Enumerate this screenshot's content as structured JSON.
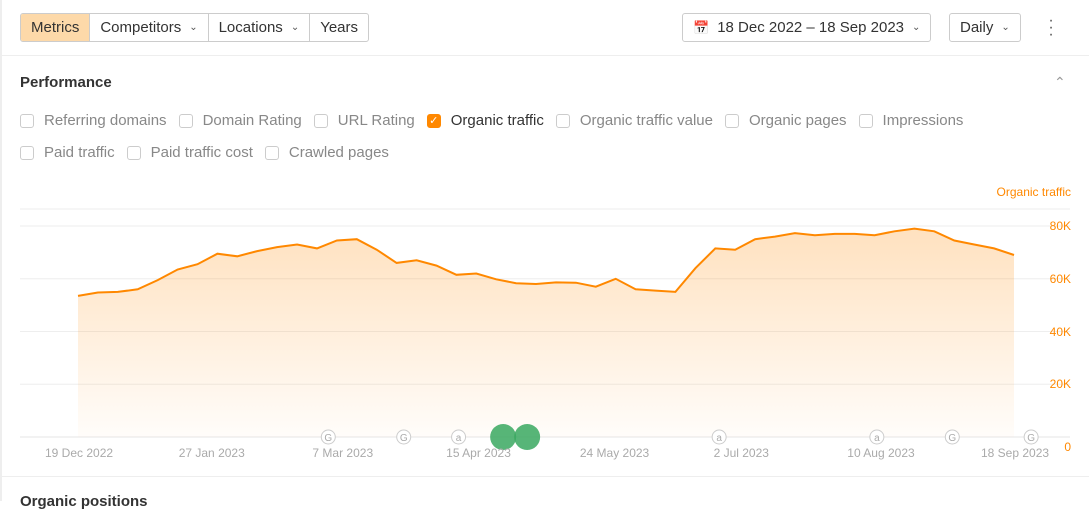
{
  "toolbar": {
    "tabs": [
      {
        "label": "Metrics",
        "active": true
      },
      {
        "label": "Competitors",
        "dropdown": true
      },
      {
        "label": "Locations",
        "dropdown": true
      },
      {
        "label": "Years"
      }
    ],
    "date_range": "18 Dec 2022 – 18 Sep 2023",
    "granularity": "Daily",
    "calendar_icon": "calendar-icon",
    "more_icon": "kebab-icon"
  },
  "section": {
    "title": "Performance",
    "collapse_icon": "chevron-up-icon",
    "next_title": "Organic positions"
  },
  "metrics": [
    {
      "label": "Referring domains",
      "checked": false
    },
    {
      "label": "Domain Rating",
      "checked": false
    },
    {
      "label": "URL Rating",
      "checked": false
    },
    {
      "label": "Organic traffic",
      "checked": true
    },
    {
      "label": "Organic traffic value",
      "checked": false
    },
    {
      "label": "Organic pages",
      "checked": false
    },
    {
      "label": "Impressions",
      "checked": false
    },
    {
      "label": "Paid traffic",
      "checked": false
    },
    {
      "label": "Paid traffic cost",
      "checked": false
    },
    {
      "label": "Crawled pages",
      "checked": false
    }
  ],
  "colors": {
    "accent": "#ff8800",
    "active_tab": "#fdd9a9",
    "event": "#3aa860"
  },
  "chart_data": {
    "type": "area",
    "series": [
      {
        "name": "Organic traffic",
        "color": "#ff8800",
        "start": "2022-12-19",
        "end": "2023-09-18",
        "values": [
          53500,
          54800,
          55000,
          56000,
          59500,
          63500,
          65500,
          69500,
          68500,
          70500,
          72000,
          73000,
          71500,
          74500,
          75000,
          71000,
          66000,
          67000,
          65000,
          61500,
          62000,
          59800,
          58300,
          58000,
          58600,
          58500,
          57000,
          60000,
          56000,
          55500,
          55000,
          64000,
          71500,
          71000,
          75000,
          76000,
          77300,
          76500,
          77000,
          77000,
          76500,
          78000,
          79000,
          78000,
          74500,
          73000,
          71500,
          69000
        ]
      }
    ],
    "ylim": [
      0,
      80000
    ],
    "yticks": [
      "80K",
      "60K",
      "40K",
      "20K",
      "0"
    ],
    "xticks": [
      "19 Dec 2022",
      "27 Jan 2023",
      "7 Mar 2023",
      "15 Apr 2023",
      "24 May 2023",
      "2 Jul 2023",
      "10 Aug 2023",
      "18 Sep 2023"
    ],
    "grid": true,
    "legend": "top-right",
    "annotations": [
      {
        "date": "2023-03-02",
        "type": "G"
      },
      {
        "date": "2023-03-24",
        "type": "G"
      },
      {
        "date": "2023-04-09",
        "type": "a"
      },
      {
        "date": "2023-04-22",
        "type": "event"
      },
      {
        "date": "2023-04-29",
        "type": "event"
      },
      {
        "date": "2023-06-24",
        "type": "a"
      },
      {
        "date": "2023-08-09",
        "type": "a"
      },
      {
        "date": "2023-08-31",
        "type": "G"
      },
      {
        "date": "2023-09-23",
        "type": "G"
      }
    ]
  }
}
